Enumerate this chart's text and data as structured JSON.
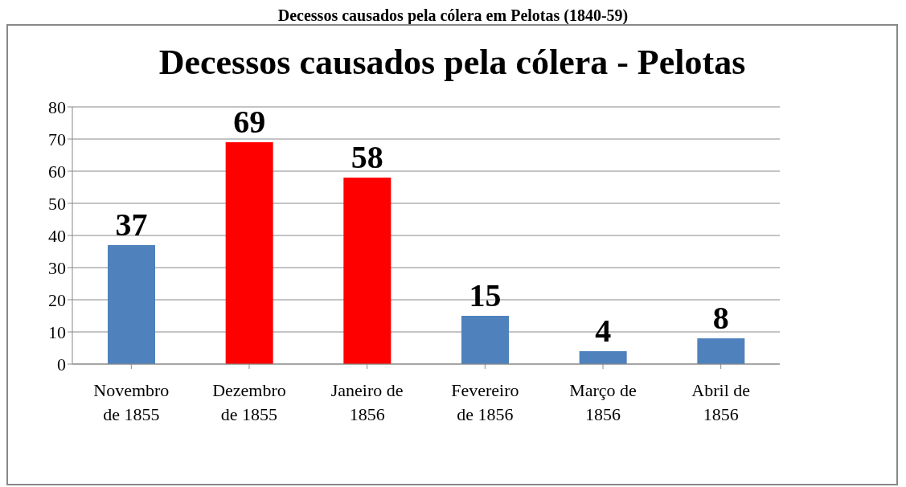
{
  "chart_data": {
    "type": "bar",
    "title": "Decessos causados pela cólera - Pelotas",
    "annotations": [
      "Decessos causados pela cólera em Pelotas (1840-59)"
    ],
    "categories": [
      "Novembro\nde 1855",
      "Dezembro\nde 1855",
      "Janeiro de\n1856",
      "Fevereiro\nde 1856",
      "Março de\n1856",
      "Abril de\n1856"
    ],
    "values": [
      37,
      69,
      58,
      15,
      4,
      8
    ],
    "colors": [
      "#4f81bd",
      "#ff0000",
      "#ff0000",
      "#4f81bd",
      "#4f81bd",
      "#4f81bd"
    ],
    "ylim": [
      0,
      80
    ],
    "yticks": [
      0,
      10,
      20,
      30,
      40,
      50,
      60,
      70,
      80
    ],
    "grid": "y",
    "data_labels": true,
    "legend": false
  }
}
